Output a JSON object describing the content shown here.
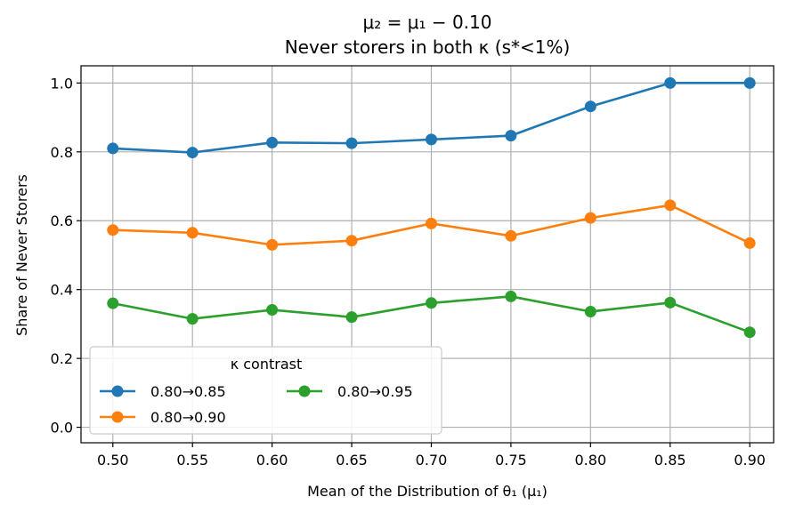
{
  "chart_data": {
    "type": "line",
    "title": "μ₂ = μ₁ − 0.10",
    "subtitle": "Never storers in both κ (s*<1%)",
    "xlabel": "Mean of the Distribution of θ₁ (μ₁)",
    "ylabel": "Share of Never Storers",
    "x": [
      0.5,
      0.55,
      0.6,
      0.65,
      0.7,
      0.75,
      0.8,
      0.85,
      0.9
    ],
    "x_tick_labels": [
      "0.50",
      "0.55",
      "0.60",
      "0.65",
      "0.70",
      "0.75",
      "0.80",
      "0.85",
      "0.90"
    ],
    "y_ticks": [
      0.0,
      0.2,
      0.4,
      0.6,
      0.8,
      1.0
    ],
    "y_tick_labels": [
      "0.0",
      "0.2",
      "0.4",
      "0.6",
      "0.8",
      "1.0"
    ],
    "xlim": [
      0.48,
      0.915
    ],
    "ylim": [
      -0.045,
      1.05
    ],
    "grid": true,
    "legend": {
      "title": "κ contrast",
      "placement": "lower-left",
      "columns": 2
    },
    "series": [
      {
        "name": "0.80→0.85",
        "color": "#1f77b4",
        "values": [
          0.81,
          0.798,
          0.827,
          0.825,
          0.836,
          0.847,
          0.932,
          1.0,
          1.0
        ]
      },
      {
        "name": "0.80→0.90",
        "color": "#ff7f0e",
        "values": [
          0.573,
          0.565,
          0.53,
          0.542,
          0.592,
          0.556,
          0.608,
          0.645,
          0.535
        ]
      },
      {
        "name": "0.80→0.95",
        "color": "#2ca02c",
        "values": [
          0.36,
          0.315,
          0.341,
          0.32,
          0.361,
          0.38,
          0.336,
          0.362,
          0.276
        ]
      }
    ]
  }
}
